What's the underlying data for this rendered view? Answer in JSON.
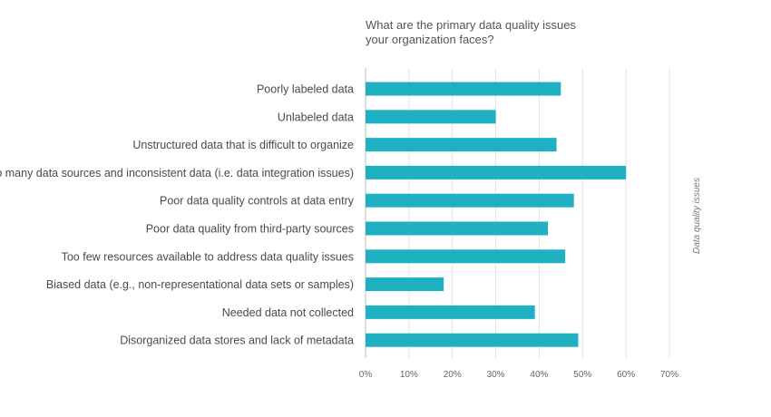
{
  "chart_data": {
    "type": "bar",
    "orientation": "horizontal",
    "title_lines": [
      "What are the primary data quality issues",
      "your organization faces?"
    ],
    "side_label": "Data quality issues",
    "categories": [
      "Poorly labeled data",
      "Unlabeled data",
      "Unstructured data that is difficult to organize",
      "Too many data sources and inconsistent data (i.e. data integration issues)",
      "Poor data quality controls at data entry",
      "Poor data quality from third-party sources",
      "Too few resources available to address data quality issues",
      "Biased data (e.g., non-representational data sets or samples)",
      "Needed data not collected",
      "Disorganized data stores and lack of metadata"
    ],
    "values": [
      45,
      30,
      44,
      60,
      48,
      42,
      46,
      18,
      39,
      49
    ],
    "xlim": [
      0,
      70
    ],
    "ticks": [
      0,
      10,
      20,
      30,
      40,
      50,
      60,
      70
    ],
    "tick_labels": [
      "0%",
      "10%",
      "20%",
      "30%",
      "40%",
      "50%",
      "60%",
      "70%"
    ],
    "grid": true,
    "bar_color": "#1fb1c2",
    "grid_color": "#e3e3e3",
    "axis_color": "#bdbdbd"
  }
}
